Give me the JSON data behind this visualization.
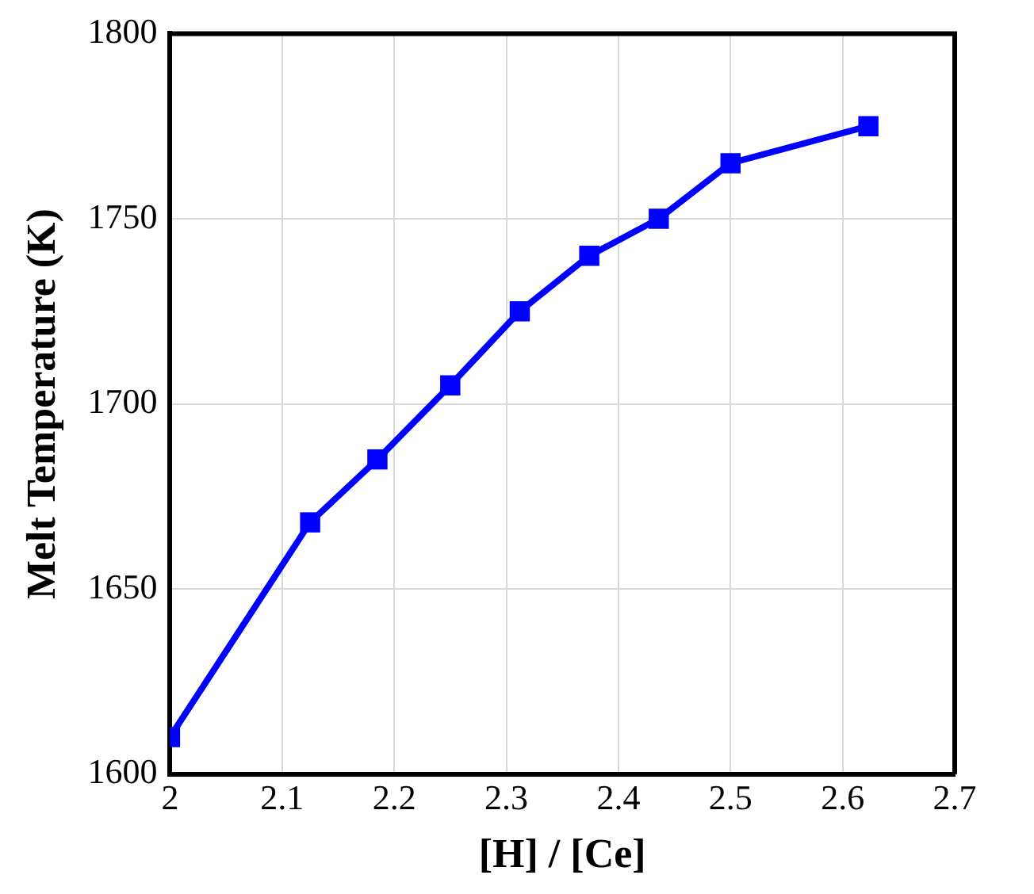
{
  "chart_data": {
    "type": "line",
    "xlabel": "[H] / [Ce]",
    "ylabel": "Melt Temperature (K)",
    "x": [
      2.0,
      2.125,
      2.185,
      2.25,
      2.312,
      2.374,
      2.436,
      2.5,
      2.623
    ],
    "series": [
      {
        "color": "#0000ff",
        "values": [
          1610,
          1668,
          1685,
          1705,
          1725,
          1740,
          1750,
          1765,
          1775
        ]
      }
    ],
    "xlim": [
      2,
      2.7
    ],
    "xticks": [
      2,
      2.1,
      2.2,
      2.3,
      2.4,
      2.5,
      2.6,
      2.7
    ],
    "ylim": [
      1600,
      1800
    ],
    "yticks": [
      1600,
      1650,
      1700,
      1750,
      1800
    ],
    "grid": true,
    "legend": false,
    "marker": "square",
    "line_style": "solid"
  }
}
